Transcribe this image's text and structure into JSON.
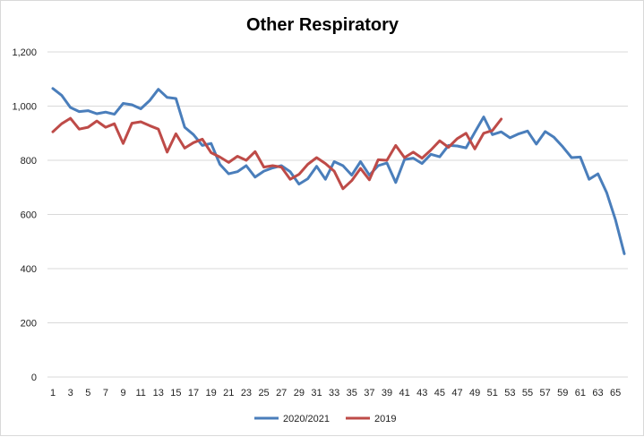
{
  "chart_data": {
    "type": "line",
    "title": "Other Respiratory",
    "xlabel": "",
    "ylabel": "",
    "ylim": [
      0,
      1200
    ],
    "y_ticks": [
      "0",
      "200",
      "400",
      "600",
      "800",
      "1,000",
      "1,200"
    ],
    "x_ticks": [
      "1",
      "3",
      "5",
      "7",
      "9",
      "11",
      "13",
      "15",
      "17",
      "19",
      "21",
      "23",
      "25",
      "27",
      "29",
      "31",
      "33",
      "35",
      "37",
      "39",
      "41",
      "43",
      "45",
      "47",
      "49",
      "51",
      "53",
      "55",
      "57",
      "59",
      "61",
      "63",
      "65"
    ],
    "x_range": [
      1,
      66
    ],
    "grid": "horizontal",
    "legend": "bottom",
    "series": [
      {
        "name": "2020/2021",
        "color": "#4a7ebb",
        "x": [
          1,
          2,
          3,
          4,
          5,
          6,
          7,
          8,
          9,
          10,
          11,
          12,
          13,
          14,
          15,
          16,
          17,
          18,
          19,
          20,
          21,
          22,
          23,
          24,
          25,
          26,
          27,
          28,
          29,
          30,
          31,
          32,
          33,
          34,
          35,
          36,
          37,
          38,
          39,
          40,
          41,
          42,
          43,
          44,
          45,
          46,
          47,
          48,
          49,
          50,
          51,
          52,
          53,
          54,
          55,
          56,
          57,
          58,
          59,
          60,
          61,
          62,
          63,
          64,
          65,
          66
        ],
        "values": [
          1065,
          1040,
          995,
          980,
          983,
          972,
          978,
          970,
          1010,
          1005,
          990,
          1020,
          1062,
          1032,
          1028,
          922,
          895,
          855,
          862,
          785,
          750,
          758,
          780,
          738,
          760,
          772,
          780,
          758,
          712,
          732,
          778,
          730,
          795,
          780,
          745,
          795,
          745,
          780,
          790,
          718,
          803,
          808,
          788,
          822,
          813,
          855,
          853,
          846,
          903,
          960,
          895,
          905,
          883,
          898,
          908,
          860,
          906,
          885,
          850,
          810,
          812,
          730,
          750,
          680,
          580,
          455
        ]
      },
      {
        "name": "2019",
        "color": "#be4b48",
        "x": [
          1,
          2,
          3,
          4,
          5,
          6,
          7,
          8,
          9,
          10,
          11,
          12,
          13,
          14,
          15,
          16,
          17,
          18,
          19,
          20,
          21,
          22,
          23,
          24,
          25,
          26,
          27,
          28,
          29,
          30,
          31,
          32,
          33,
          34,
          35,
          36,
          37,
          38,
          39,
          40,
          41,
          42,
          43,
          44,
          45,
          46,
          47,
          48,
          49,
          50,
          51,
          52
        ],
        "values": [
          905,
          935,
          955,
          915,
          922,
          945,
          922,
          935,
          862,
          937,
          942,
          928,
          915,
          830,
          898,
          845,
          865,
          878,
          828,
          812,
          792,
          815,
          800,
          832,
          775,
          780,
          775,
          730,
          748,
          785,
          810,
          788,
          760,
          695,
          725,
          770,
          728,
          802,
          800,
          855,
          810,
          830,
          808,
          838,
          872,
          848,
          880,
          900,
          842,
          900,
          910,
          952
        ]
      }
    ]
  }
}
